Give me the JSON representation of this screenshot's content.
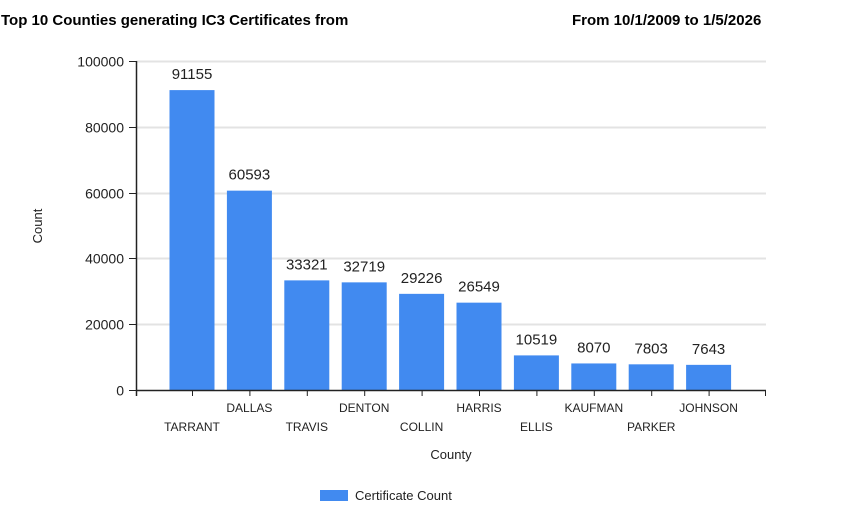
{
  "header": {
    "title": "Top 10 Counties generating IC3 Certificates from",
    "date_range": "From 10/1/2009 to 1/5/2026"
  },
  "legend": {
    "label": "Certificate Count",
    "color": "#418af0"
  },
  "chart_data": {
    "type": "bar",
    "title": "Top 10 Counties generating IC3 Certificates from",
    "subtitle": "From 10/1/2009 to 1/5/2026",
    "xlabel": "County",
    "ylabel": "Count",
    "categories": [
      "TARRANT",
      "DALLAS",
      "TRAVIS",
      "DENTON",
      "COLLIN",
      "HARRIS",
      "ELLIS",
      "KAUFMAN",
      "PARKER",
      "JOHNSON"
    ],
    "series": [
      {
        "name": "Certificate Count",
        "values": [
          91155,
          60593,
          33321,
          32719,
          29226,
          26549,
          10519,
          8070,
          7803,
          7643
        ],
        "color": "#418af0"
      }
    ],
    "yticks": [
      0,
      20000,
      40000,
      60000,
      80000,
      100000
    ],
    "ylim": [
      0,
      100000
    ],
    "grid": true,
    "data_labels": true,
    "legend_position": "bottom"
  }
}
